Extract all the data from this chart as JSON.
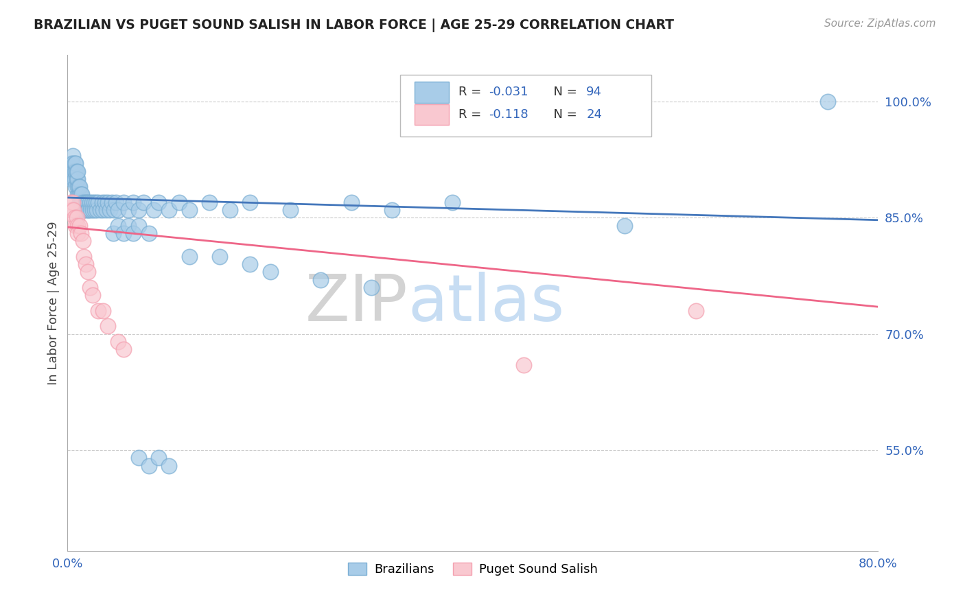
{
  "title": "BRAZILIAN VS PUGET SOUND SALISH IN LABOR FORCE | AGE 25-29 CORRELATION CHART",
  "source_text": "Source: ZipAtlas.com",
  "ylabel": "In Labor Force | Age 25-29",
  "xlim": [
    0.0,
    0.8
  ],
  "ylim": [
    0.42,
    1.06
  ],
  "ytick_vals": [
    0.55,
    0.7,
    0.85,
    1.0
  ],
  "ytick_labels": [
    "55.0%",
    "70.0%",
    "85.0%",
    "100.0%"
  ],
  "blue_color": "#7BAFD4",
  "blue_fill": "#A8CCE8",
  "pink_color": "#F4A0B0",
  "pink_fill": "#F9C8D0",
  "line_blue": "#4477BB",
  "line_pink": "#EE6688",
  "watermark_zip": "ZIP",
  "watermark_atlas": "atlas",
  "blue_x": [
    0.003,
    0.004,
    0.004,
    0.005,
    0.005,
    0.005,
    0.006,
    0.006,
    0.007,
    0.007,
    0.007,
    0.008,
    0.008,
    0.008,
    0.009,
    0.009,
    0.01,
    0.01,
    0.01,
    0.01,
    0.011,
    0.011,
    0.012,
    0.012,
    0.012,
    0.013,
    0.013,
    0.014,
    0.014,
    0.015,
    0.015,
    0.016,
    0.017,
    0.018,
    0.019,
    0.02,
    0.02,
    0.021,
    0.022,
    0.023,
    0.024,
    0.025,
    0.026,
    0.027,
    0.028,
    0.029,
    0.03,
    0.032,
    0.034,
    0.035,
    0.037,
    0.038,
    0.04,
    0.042,
    0.044,
    0.046,
    0.048,
    0.05,
    0.055,
    0.06,
    0.065,
    0.07,
    0.075,
    0.085,
    0.09,
    0.1,
    0.11,
    0.12,
    0.14,
    0.16,
    0.18,
    0.22,
    0.28,
    0.32,
    0.38,
    0.045,
    0.05,
    0.055,
    0.06,
    0.065,
    0.07,
    0.08,
    0.12,
    0.15,
    0.18,
    0.2,
    0.25,
    0.3,
    0.55,
    0.07,
    0.08,
    0.09,
    0.1,
    0.75
  ],
  "blue_y": [
    0.9,
    0.92,
    0.91,
    0.93,
    0.91,
    0.92,
    0.9,
    0.91,
    0.92,
    0.91,
    0.9,
    0.91,
    0.92,
    0.89,
    0.9,
    0.91,
    0.88,
    0.89,
    0.9,
    0.91,
    0.88,
    0.89,
    0.87,
    0.88,
    0.89,
    0.87,
    0.88,
    0.87,
    0.88,
    0.86,
    0.87,
    0.86,
    0.87,
    0.86,
    0.87,
    0.86,
    0.87,
    0.86,
    0.87,
    0.86,
    0.87,
    0.86,
    0.87,
    0.86,
    0.87,
    0.86,
    0.87,
    0.86,
    0.87,
    0.86,
    0.87,
    0.86,
    0.87,
    0.86,
    0.87,
    0.86,
    0.87,
    0.86,
    0.87,
    0.86,
    0.87,
    0.86,
    0.87,
    0.86,
    0.87,
    0.86,
    0.87,
    0.86,
    0.87,
    0.86,
    0.87,
    0.86,
    0.87,
    0.86,
    0.87,
    0.83,
    0.84,
    0.83,
    0.84,
    0.83,
    0.84,
    0.83,
    0.8,
    0.8,
    0.79,
    0.78,
    0.77,
    0.76,
    0.84,
    0.54,
    0.53,
    0.54,
    0.53,
    1.0
  ],
  "pink_x": [
    0.003,
    0.004,
    0.005,
    0.006,
    0.007,
    0.008,
    0.009,
    0.01,
    0.01,
    0.012,
    0.013,
    0.015,
    0.016,
    0.018,
    0.02,
    0.022,
    0.025,
    0.03,
    0.035,
    0.04,
    0.05,
    0.055,
    0.45,
    0.62
  ],
  "pink_y": [
    0.87,
    0.86,
    0.87,
    0.86,
    0.85,
    0.84,
    0.85,
    0.84,
    0.83,
    0.84,
    0.83,
    0.82,
    0.8,
    0.79,
    0.78,
    0.76,
    0.75,
    0.73,
    0.73,
    0.71,
    0.69,
    0.68,
    0.66,
    0.73
  ],
  "blue_trend_x0": 0.0,
  "blue_trend_y0": 0.876,
  "blue_trend_x1": 0.8,
  "blue_trend_y1": 0.847,
  "pink_trend_x0": 0.0,
  "pink_trend_y0": 0.838,
  "pink_trend_x1": 0.8,
  "pink_trend_y1": 0.735
}
